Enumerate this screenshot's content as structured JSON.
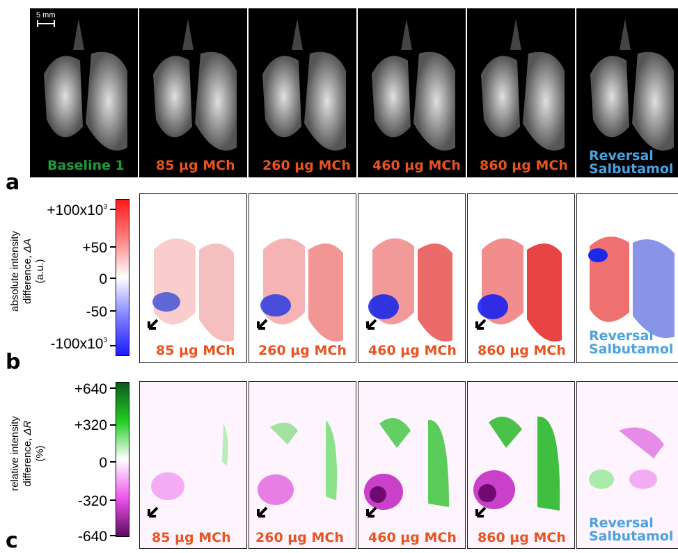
{
  "colors": {
    "mch": "#e8531f",
    "baseline": "#1f9a3a",
    "reversal": "#4aa3e0",
    "cb_red": "#ff1a1a",
    "cb_blue": "#1a1aff",
    "cb_green": "#0a5a1a",
    "cb_purple": "#5a0a5a"
  },
  "panel_a": {
    "letter": "a",
    "scale_bar_label": "5 mm",
    "captions": [
      "Baseline 1",
      "85 µg MCh",
      "260 µg MCh",
      "460 µg MCh",
      "860 µg MCh"
    ],
    "reversal_line1": "Reversal",
    "reversal_line2": "Salbutamol"
  },
  "panel_b": {
    "letter": "b",
    "axis_title_line1": "absolute intensity",
    "axis_title_line2_prefix": "difference, ",
    "axis_title_line2_symbol": "ΔA",
    "axis_title_line3": "(a.u.)",
    "ticks": [
      "+100x10",
      "+50",
      "0",
      "-50",
      "-100x10"
    ],
    "tick_sup": "3",
    "captions": [
      "85 µg MCh",
      "260 µg MCh",
      "460 µg MCh",
      "860 µg MCh"
    ],
    "reversal_line1": "Reversal",
    "reversal_line2": "Salbutamol"
  },
  "panel_c": {
    "letter": "c",
    "axis_title_line1": "relative intensity",
    "axis_title_line2_prefix": "difference, ",
    "axis_title_line2_symbol": "ΔR",
    "axis_title_line3": "(%)",
    "ticks": [
      "+640",
      "+320",
      "0",
      "-320",
      "-640"
    ],
    "captions": [
      "85 µg MCh",
      "260 µg MCh",
      "460 µg MCh",
      "860 µg MCh"
    ],
    "reversal_line1": "Reversal",
    "reversal_line2": "Salbutamol"
  }
}
